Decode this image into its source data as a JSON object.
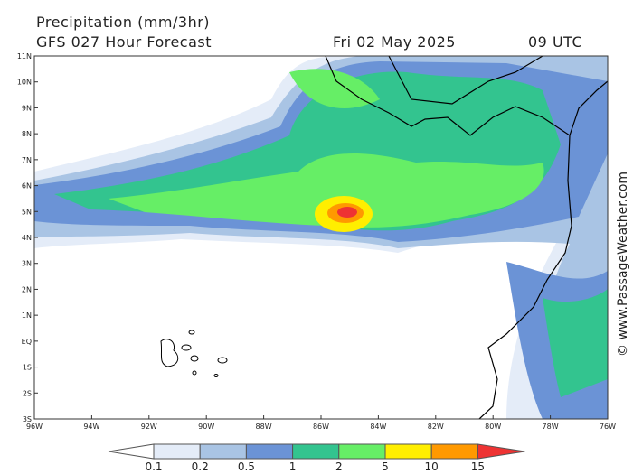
{
  "header": {
    "title": "Precipitation (mm/3hr)",
    "subtitle": "GFS 027 Hour Forecast",
    "date": "Fri 02 May 2025",
    "time": "09 UTC"
  },
  "map": {
    "lat_labels": [
      "11N",
      "10N",
      "9N",
      "8N",
      "7N",
      "6N",
      "5N",
      "4N",
      "3N",
      "2N",
      "1N",
      "EQ",
      "1S",
      "2S",
      "3S"
    ],
    "lon_labels": [
      "96W",
      "94W",
      "92W",
      "90W",
      "88W",
      "86W",
      "84W",
      "82W",
      "80W",
      "78W",
      "76W"
    ]
  },
  "colorbar": {
    "labels": [
      "0.1",
      "0.2",
      "0.5",
      "1",
      "2",
      "5",
      "10",
      "15"
    ]
  },
  "credit": "© www.PassageWeather.com"
}
